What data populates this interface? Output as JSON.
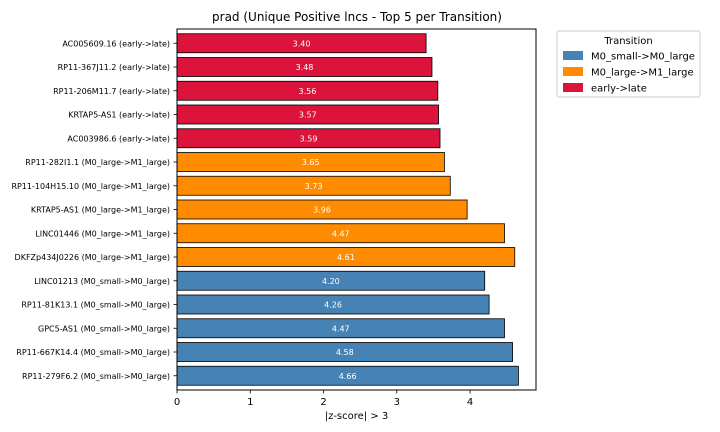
{
  "chart_data": {
    "type": "bar",
    "orientation": "horizontal",
    "title": "prad (Unique Positive lncs - Top 5 per Transition)",
    "xlabel": "|z-score| > 3",
    "ylabel": "",
    "xlim": [
      0,
      4.9
    ],
    "xticks": [
      "0",
      "1",
      "2",
      "3",
      "4"
    ],
    "grid": false,
    "legend": {
      "title": "Transition",
      "placement": "outside-top-right",
      "entries": [
        {
          "name": "M0_small->M0_large",
          "color": "#4682b4"
        },
        {
          "name": "M0_large->M1_large",
          "color": "#ff8c00"
        },
        {
          "name": "early->late",
          "color": "#dc143c"
        }
      ]
    },
    "bars": [
      {
        "label": "AC005609.16 (early->late)",
        "value": 3.4,
        "value_label": "3.40",
        "group": "early->late"
      },
      {
        "label": "RP11-367J11.2 (early->late)",
        "value": 3.48,
        "value_label": "3.48",
        "group": "early->late"
      },
      {
        "label": "RP11-206M11.7 (early->late)",
        "value": 3.56,
        "value_label": "3.56",
        "group": "early->late"
      },
      {
        "label": "KRTAP5-AS1 (early->late)",
        "value": 3.57,
        "value_label": "3.57",
        "group": "early->late"
      },
      {
        "label": "AC003986.6 (early->late)",
        "value": 3.59,
        "value_label": "3.59",
        "group": "early->late"
      },
      {
        "label": "RP11-282I1.1 (M0_large->M1_large)",
        "value": 3.65,
        "value_label": "3.65",
        "group": "M0_large->M1_large"
      },
      {
        "label": "RP11-104H15.10 (M0_large->M1_large)",
        "value": 3.73,
        "value_label": "3.73",
        "group": "M0_large->M1_large"
      },
      {
        "label": "KRTAP5-AS1 (M0_large->M1_large)",
        "value": 3.96,
        "value_label": "3.96",
        "group": "M0_large->M1_large"
      },
      {
        "label": "LINC01446 (M0_large->M1_large)",
        "value": 4.47,
        "value_label": "4.47",
        "group": "M0_large->M1_large"
      },
      {
        "label": "DKFZp434J0226 (M0_large->M1_large)",
        "value": 4.61,
        "value_label": "4.61",
        "group": "M0_large->M1_large"
      },
      {
        "label": "LINC01213 (M0_small->M0_large)",
        "value": 4.2,
        "value_label": "4.20",
        "group": "M0_small->M0_large"
      },
      {
        "label": "RP11-81K13.1 (M0_small->M0_large)",
        "value": 4.26,
        "value_label": "4.26",
        "group": "M0_small->M0_large"
      },
      {
        "label": "GPC5-AS1 (M0_small->M0_large)",
        "value": 4.47,
        "value_label": "4.47",
        "group": "M0_small->M0_large"
      },
      {
        "label": "RP11-667K14.4 (M0_small->M0_large)",
        "value": 4.58,
        "value_label": "4.58",
        "group": "M0_small->M0_large"
      },
      {
        "label": "RP11-279F6.2 (M0_small->M0_large)",
        "value": 4.66,
        "value_label": "4.66",
        "group": "M0_small->M0_large"
      }
    ]
  }
}
